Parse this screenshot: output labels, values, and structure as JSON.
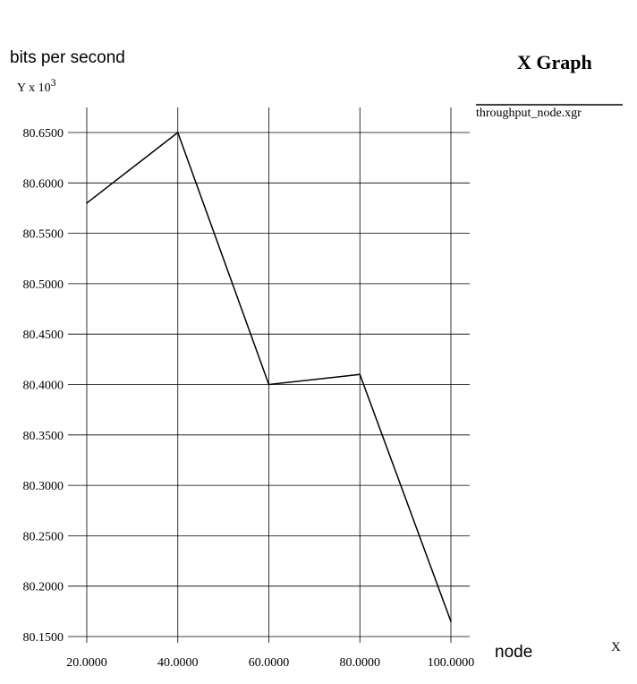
{
  "window": {
    "title": "X Graph",
    "legend_entry": "throughput_node.xgr"
  },
  "chart_data": {
    "type": "line",
    "title": "X Graph",
    "ylabel": "bits per second",
    "y_scale_label_prefix": "Y x 10",
    "y_scale_exponent": "3",
    "xlabel": "node",
    "x_scale_label": "X",
    "xlim": [
      20,
      100
    ],
    "ylim": [
      80.15,
      80.665
    ],
    "x_ticks": [
      20,
      40,
      60,
      80,
      100
    ],
    "x_tick_labels": [
      "20.0000",
      "40.0000",
      "60.0000",
      "80.0000",
      "100.0000"
    ],
    "y_ticks": [
      80.15,
      80.2,
      80.25,
      80.3,
      80.35,
      80.4,
      80.45,
      80.5,
      80.55,
      80.6,
      80.65
    ],
    "y_tick_labels": [
      "80.1500",
      "80.2000",
      "80.2500",
      "80.3000",
      "80.3500",
      "80.4000",
      "80.4500",
      "80.5000",
      "80.5500",
      "80.6000",
      "80.6500"
    ],
    "grid": true,
    "legend_position": "right",
    "series": [
      {
        "name": "throughput_node.xgr",
        "color": "#000000",
        "x": [
          20,
          40,
          60,
          80,
          100
        ],
        "y": [
          80.58,
          80.65,
          80.4,
          80.41,
          80.165
        ]
      }
    ]
  }
}
